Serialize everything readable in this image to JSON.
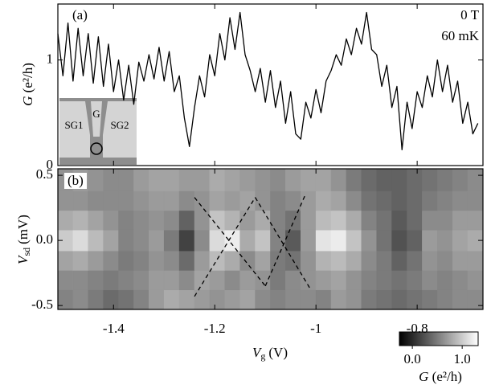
{
  "chart_data": [
    {
      "type": "line",
      "panel_label": "(a)",
      "annotations": [
        "0 T",
        "60 mK"
      ],
      "inset_labels": [
        "SG1",
        "G",
        "SG2"
      ],
      "ylabel": {
        "symbol": "G",
        "unit": "(e²/h)"
      },
      "color": "#000000",
      "xlim": [
        -1.51,
        -0.67
      ],
      "xticks": [
        -1.4,
        -1.2,
        -1.0,
        -0.8
      ],
      "ylim": [
        0,
        1.53
      ],
      "yticks": [
        0,
        1
      ],
      "x": [
        -1.51,
        -1.5,
        -1.49,
        -1.48,
        -1.47,
        -1.46,
        -1.45,
        -1.44,
        -1.43,
        -1.42,
        -1.41,
        -1.4,
        -1.39,
        -1.38,
        -1.37,
        -1.36,
        -1.35,
        -1.34,
        -1.33,
        -1.32,
        -1.31,
        -1.3,
        -1.29,
        -1.28,
        -1.27,
        -1.26,
        -1.25,
        -1.24,
        -1.23,
        -1.22,
        -1.21,
        -1.2,
        -1.19,
        -1.18,
        -1.17,
        -1.16,
        -1.15,
        -1.14,
        -1.13,
        -1.12,
        -1.11,
        -1.1,
        -1.09,
        -1.08,
        -1.07,
        -1.06,
        -1.05,
        -1.04,
        -1.03,
        -1.02,
        -1.01,
        -1.0,
        -0.99,
        -0.98,
        -0.97,
        -0.96,
        -0.95,
        -0.94,
        -0.93,
        -0.92,
        -0.91,
        -0.9,
        -0.89,
        -0.88,
        -0.87,
        -0.86,
        -0.85,
        -0.84,
        -0.83,
        -0.82,
        -0.81,
        -0.8,
        -0.79,
        -0.78,
        -0.77,
        -0.76,
        -0.75,
        -0.74,
        -0.73,
        -0.72,
        -0.71,
        -0.7,
        -0.69,
        -0.68
      ],
      "values": [
        1.25,
        0.85,
        1.35,
        0.8,
        1.3,
        0.85,
        1.25,
        0.78,
        1.22,
        0.75,
        1.15,
        0.7,
        1.0,
        0.62,
        0.95,
        0.58,
        0.98,
        0.8,
        1.05,
        0.82,
        1.12,
        0.8,
        1.08,
        0.7,
        0.85,
        0.45,
        0.18,
        0.55,
        0.85,
        0.65,
        1.05,
        0.85,
        1.25,
        1.0,
        1.4,
        1.1,
        1.45,
        1.05,
        0.9,
        0.7,
        0.92,
        0.6,
        0.9,
        0.55,
        0.8,
        0.4,
        0.7,
        0.3,
        0.25,
        0.6,
        0.45,
        0.72,
        0.5,
        0.8,
        0.9,
        1.05,
        0.95,
        1.2,
        1.05,
        1.3,
        1.15,
        1.45,
        1.1,
        1.05,
        0.75,
        0.95,
        0.55,
        0.75,
        0.15,
        0.6,
        0.35,
        0.7,
        0.55,
        0.85,
        0.65,
        1.0,
        0.7,
        0.95,
        0.6,
        0.8,
        0.4,
        0.6,
        0.3,
        0.4
      ]
    },
    {
      "type": "heatmap",
      "panel_label": "(b)",
      "xlabel": {
        "symbol": "V",
        "subscript": "g",
        "unit": "(V)"
      },
      "ylabel": {
        "symbol": "V",
        "subscript": "sd",
        "unit": "(mV)"
      },
      "xlim": [
        -1.51,
        -0.67
      ],
      "xticks": [
        -1.4,
        -1.2,
        -1.0,
        -0.8
      ],
      "ylim": [
        -0.53,
        0.55
      ],
      "yticks": [
        0.5,
        {
          "value": 0,
          "label": "0.0"
        },
        -0.5
      ],
      "x_edges": [
        -1.51,
        -1.48,
        -1.45,
        -1.42,
        -1.39,
        -1.36,
        -1.33,
        -1.3,
        -1.27,
        -1.24,
        -1.21,
        -1.18,
        -1.15,
        -1.12,
        -1.09,
        -1.06,
        -1.03,
        -1.0,
        -0.97,
        -0.94,
        -0.91,
        -0.88,
        -0.85,
        -0.82,
        -0.79,
        -0.76,
        -0.73,
        -0.7,
        -0.67
      ],
      "y_edges": [
        -0.53,
        -0.38,
        -0.23,
        -0.08,
        0.08,
        0.23,
        0.38,
        0.55
      ],
      "z": [
        [
          0.55,
          0.6,
          0.5,
          0.4,
          0.45,
          0.55,
          0.7,
          0.8,
          0.75,
          0.7,
          0.65,
          0.7,
          0.75,
          0.6,
          0.55,
          0.6,
          0.6,
          0.55,
          0.7,
          0.65,
          0.5,
          0.45,
          0.4,
          0.45,
          0.5,
          0.55,
          0.6,
          0.6
        ],
        [
          0.6,
          0.6,
          0.55,
          0.5,
          0.55,
          0.6,
          0.7,
          0.7,
          0.6,
          0.75,
          0.7,
          0.6,
          0.7,
          0.65,
          0.5,
          0.6,
          0.65,
          0.7,
          0.75,
          0.65,
          0.55,
          0.5,
          0.45,
          0.5,
          0.6,
          0.55,
          0.6,
          0.65
        ],
        [
          0.75,
          0.8,
          0.7,
          0.6,
          0.5,
          0.55,
          0.65,
          0.6,
          0.4,
          0.7,
          0.9,
          0.8,
          0.6,
          0.75,
          0.5,
          0.45,
          0.65,
          0.85,
          0.9,
          0.8,
          0.6,
          0.5,
          0.35,
          0.45,
          0.65,
          0.6,
          0.7,
          0.7
        ],
        [
          1.0,
          1.1,
          0.9,
          0.75,
          0.55,
          0.6,
          0.7,
          0.5,
          0.15,
          0.6,
          1.1,
          1.2,
          0.8,
          0.95,
          0.55,
          0.3,
          0.7,
          1.15,
          1.2,
          0.95,
          0.65,
          0.45,
          0.25,
          0.35,
          0.7,
          0.65,
          0.75,
          0.8
        ],
        [
          0.8,
          0.85,
          0.75,
          0.65,
          0.55,
          0.6,
          0.65,
          0.6,
          0.35,
          0.65,
          0.95,
          0.85,
          0.7,
          0.8,
          0.55,
          0.45,
          0.7,
          0.9,
          0.95,
          0.8,
          0.55,
          0.45,
          0.3,
          0.4,
          0.6,
          0.6,
          0.7,
          0.7
        ],
        [
          0.65,
          0.65,
          0.6,
          0.6,
          0.6,
          0.65,
          0.7,
          0.7,
          0.6,
          0.65,
          0.75,
          0.7,
          0.75,
          0.65,
          0.55,
          0.6,
          0.7,
          0.8,
          0.75,
          0.6,
          0.45,
          0.4,
          0.35,
          0.4,
          0.5,
          0.55,
          0.6,
          0.6
        ],
        [
          0.65,
          0.7,
          0.65,
          0.6,
          0.6,
          0.7,
          0.75,
          0.75,
          0.7,
          0.7,
          0.8,
          0.75,
          0.7,
          0.65,
          0.6,
          0.7,
          0.75,
          0.75,
          0.65,
          0.5,
          0.4,
          0.35,
          0.35,
          0.4,
          0.45,
          0.5,
          0.55,
          0.6
        ]
      ],
      "dashed_lines": [
        {
          "x": [
            -1.24,
            -1.1
          ],
          "y": [
            0.33,
            -0.35
          ]
        },
        {
          "x": [
            -1.24,
            -1.12
          ],
          "y": [
            -0.43,
            0.33
          ]
        },
        {
          "x": [
            -1.12,
            -1.01
          ],
          "y": [
            0.33,
            -0.38
          ]
        },
        {
          "x": [
            -1.1,
            -1.02
          ],
          "y": [
            -0.35,
            0.36
          ]
        }
      ],
      "colorbar": {
        "zlim": [
          -0.26,
          1.32
        ],
        "ticks": [
          {
            "value": 0,
            "label": "0.0"
          },
          {
            "value": 1,
            "label": "1.0"
          }
        ],
        "label": {
          "symbol": "G",
          "unit": "(e²/h)"
        }
      }
    }
  ]
}
